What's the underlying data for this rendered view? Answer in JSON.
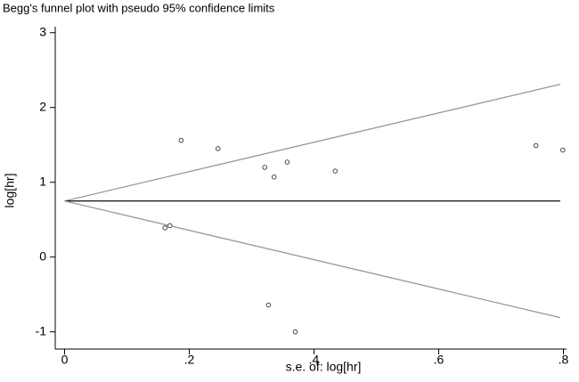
{
  "chart_data": {
    "type": "scatter",
    "title": "Begg's funnel plot with pseudo 95% confidence limits",
    "xlabel": "s.e. of: log[hr]",
    "ylabel": "log[hr]",
    "xlim": [
      -0.015,
      0.805
    ],
    "ylim": [
      -1.23,
      3.08
    ],
    "xticks": [
      0,
      {
        "value": 0.2,
        "label": ".2"
      },
      {
        "value": 0.4,
        "label": ".4"
      },
      {
        "value": 0.6,
        "label": ".6"
      },
      {
        "value": 0.8,
        "label": ".8"
      }
    ],
    "yticks": [
      -1,
      0,
      1,
      2,
      3
    ],
    "x": [
      0.187,
      0.246,
      0.321,
      0.336,
      0.357,
      0.434,
      0.756,
      0.799,
      0.161,
      0.169,
      0.327,
      0.37
    ],
    "values": [
      1.56,
      1.45,
      1.2,
      1.07,
      1.27,
      1.15,
      1.49,
      1.43,
      0.39,
      0.42,
      -0.64,
      -1.0
    ],
    "marker_color": "#333333",
    "lines": [
      {
        "x": [
          0,
          0.795
        ],
        "values": [
          0.75,
          2.31
        ],
        "color": "#999999"
      },
      {
        "x": [
          0,
          0.795
        ],
        "values": [
          0.75,
          0.75
        ],
        "color": "#222222"
      },
      {
        "x": [
          0,
          0.795
        ],
        "values": [
          0.75,
          -0.81
        ],
        "color": "#999999"
      }
    ]
  }
}
